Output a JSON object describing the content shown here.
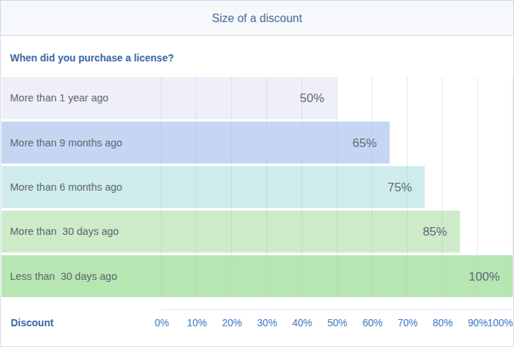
{
  "chart_data": {
    "type": "bar",
    "orientation": "horizontal",
    "title": "Size of a discount",
    "subtitle": "When did you purchase a license?",
    "xlabel": "Discount",
    "categories": [
      "More than 1 year ago",
      "More than 9 months ago",
      "More than 6 months ago",
      "More than  30 days ago",
      "Less than  30 days ago"
    ],
    "values": [
      50,
      65,
      75,
      85,
      100
    ],
    "value_labels": [
      "50%",
      "65%",
      "75%",
      "85%",
      "100%"
    ],
    "colors": [
      "#efeffa",
      "#c6d6f2",
      "#ceecec",
      "#cdebc9",
      "#b6e6b2"
    ],
    "xlim": [
      0,
      100
    ],
    "xticks": [
      {
        "value": 0,
        "label": "0%"
      },
      {
        "value": 10,
        "label": "10%"
      },
      {
        "value": 20,
        "label": "20%"
      },
      {
        "value": 30,
        "label": "30%"
      },
      {
        "value": 40,
        "label": "40%"
      },
      {
        "value": 50,
        "label": "50%"
      },
      {
        "value": 60,
        "label": "60%"
      },
      {
        "value": 70,
        "label": "70%"
      },
      {
        "value": 80,
        "label": "80%"
      },
      {
        "value": 90,
        "label": "90%"
      },
      {
        "value": 100,
        "label": "100%"
      }
    ],
    "grid": true,
    "data_labels": true
  }
}
